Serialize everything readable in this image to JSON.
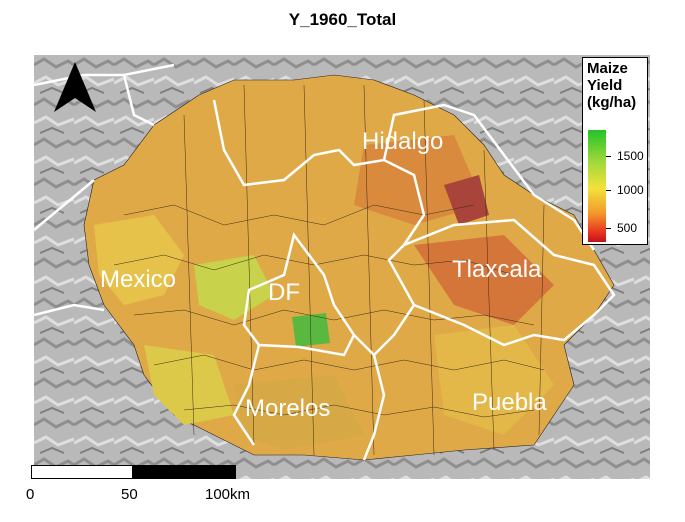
{
  "title": "Y_1960_Total",
  "legend": {
    "title_lines": [
      "Maize",
      "Yield",
      "(kg/ha)"
    ],
    "ticks": [
      "1500",
      "1000",
      "500"
    ],
    "colors": {
      "high": "#22c428",
      "mid": "#f2e23a",
      "low": "#c2101a"
    }
  },
  "regions": {
    "hidalgo": "Hidalgo",
    "mexico": "Mexico",
    "df": "DF",
    "tlaxcala": "Tlaxcala",
    "morelos": "Morelos",
    "puebla": "Puebla"
  },
  "scale_bar": {
    "labels": [
      "0",
      "50",
      "100km"
    ]
  },
  "north_arrow": "north-arrow-icon"
}
